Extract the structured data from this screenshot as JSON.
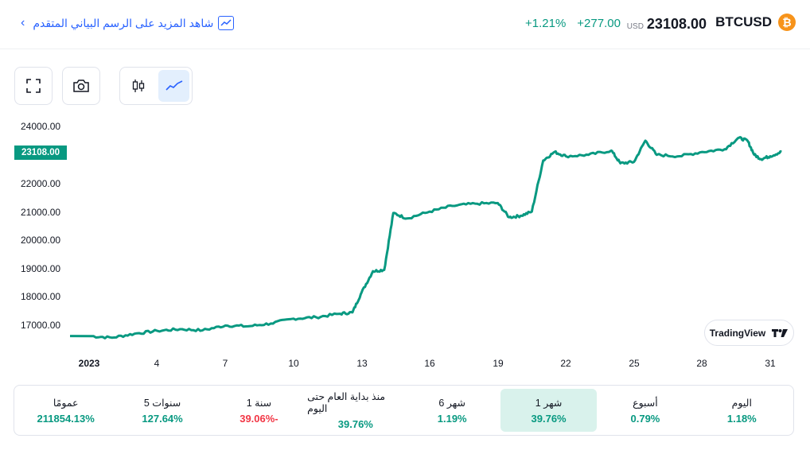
{
  "header": {
    "symbol": "BTCUSD",
    "currency": "USD",
    "price": "23108.00",
    "change_abs": "+277.00",
    "change_pct": "+1.21%",
    "advanced_chart_link": "شاهد المزيد على الرسم البياني المتقدم",
    "coin_icon": "bitcoin-icon"
  },
  "toolbar": {
    "fullscreen_icon": "fullscreen-icon",
    "screenshot_icon": "camera-icon",
    "candles_icon": "candlestick-icon",
    "line_icon": "line-chart-icon",
    "active_type": "line"
  },
  "chart_data": {
    "type": "line",
    "title": "",
    "xlabel": "",
    "ylabel": "",
    "ylim": [
      16400,
      24300
    ],
    "y_ticks": [
      "24000.00",
      "23000.00",
      "22000.00",
      "21000.00",
      "20000.00",
      "19000.00",
      "18000.00",
      "17000.00"
    ],
    "x_ticks": [
      "2023",
      "4",
      "7",
      "10",
      "13",
      "16",
      "19",
      "22",
      "25",
      "28",
      "31"
    ],
    "last_value_label": "23108.00",
    "line_color": "#089981",
    "grid": false,
    "x": [
      1,
      2,
      3,
      4,
      5,
      6,
      7,
      8,
      9,
      10,
      11,
      12,
      12.6,
      13,
      13.5,
      14,
      14.4,
      15,
      16,
      17,
      18,
      19,
      19.5,
      20,
      20.5,
      21,
      21.5,
      22,
      23,
      24,
      24.4,
      25,
      25.5,
      26,
      27,
      28,
      29,
      29.6,
      30,
      30.3,
      30.6,
      31,
      31.5
    ],
    "values": [
      16620,
      16560,
      16700,
      16800,
      16860,
      16820,
      16990,
      16960,
      17060,
      17230,
      17280,
      17400,
      17450,
      18150,
      18900,
      18950,
      20950,
      20760,
      21000,
      21200,
      21280,
      21300,
      20800,
      20850,
      21000,
      22800,
      23100,
      22950,
      23000,
      23150,
      22700,
      22750,
      23500,
      23000,
      22950,
      23100,
      23200,
      23600,
      23500,
      23000,
      22850,
      22950,
      23108
    ]
  },
  "tradingview_badge": "TradingView",
  "periods": [
    {
      "label": "اليوم",
      "value": "1.18%",
      "sign": "pos",
      "active": false
    },
    {
      "label": "أسبوع",
      "value": "0.79%",
      "sign": "pos",
      "active": false
    },
    {
      "label": "1 شهر",
      "value": "39.76%",
      "sign": "pos",
      "active": true
    },
    {
      "label": "6 شهر",
      "value": "1.19%",
      "sign": "pos",
      "active": false
    },
    {
      "label": "منذ بداية العام حتى اليوم",
      "value": "39.76%",
      "sign": "pos",
      "active": false
    },
    {
      "label": "1 سنة",
      "value": "39.06%-",
      "sign": "neg",
      "active": false
    },
    {
      "label": "5 سنوات",
      "value": "127.64%",
      "sign": "pos",
      "active": false
    },
    {
      "label": "عمومًا",
      "value": "211854.13%",
      "sign": "pos",
      "active": false
    }
  ]
}
